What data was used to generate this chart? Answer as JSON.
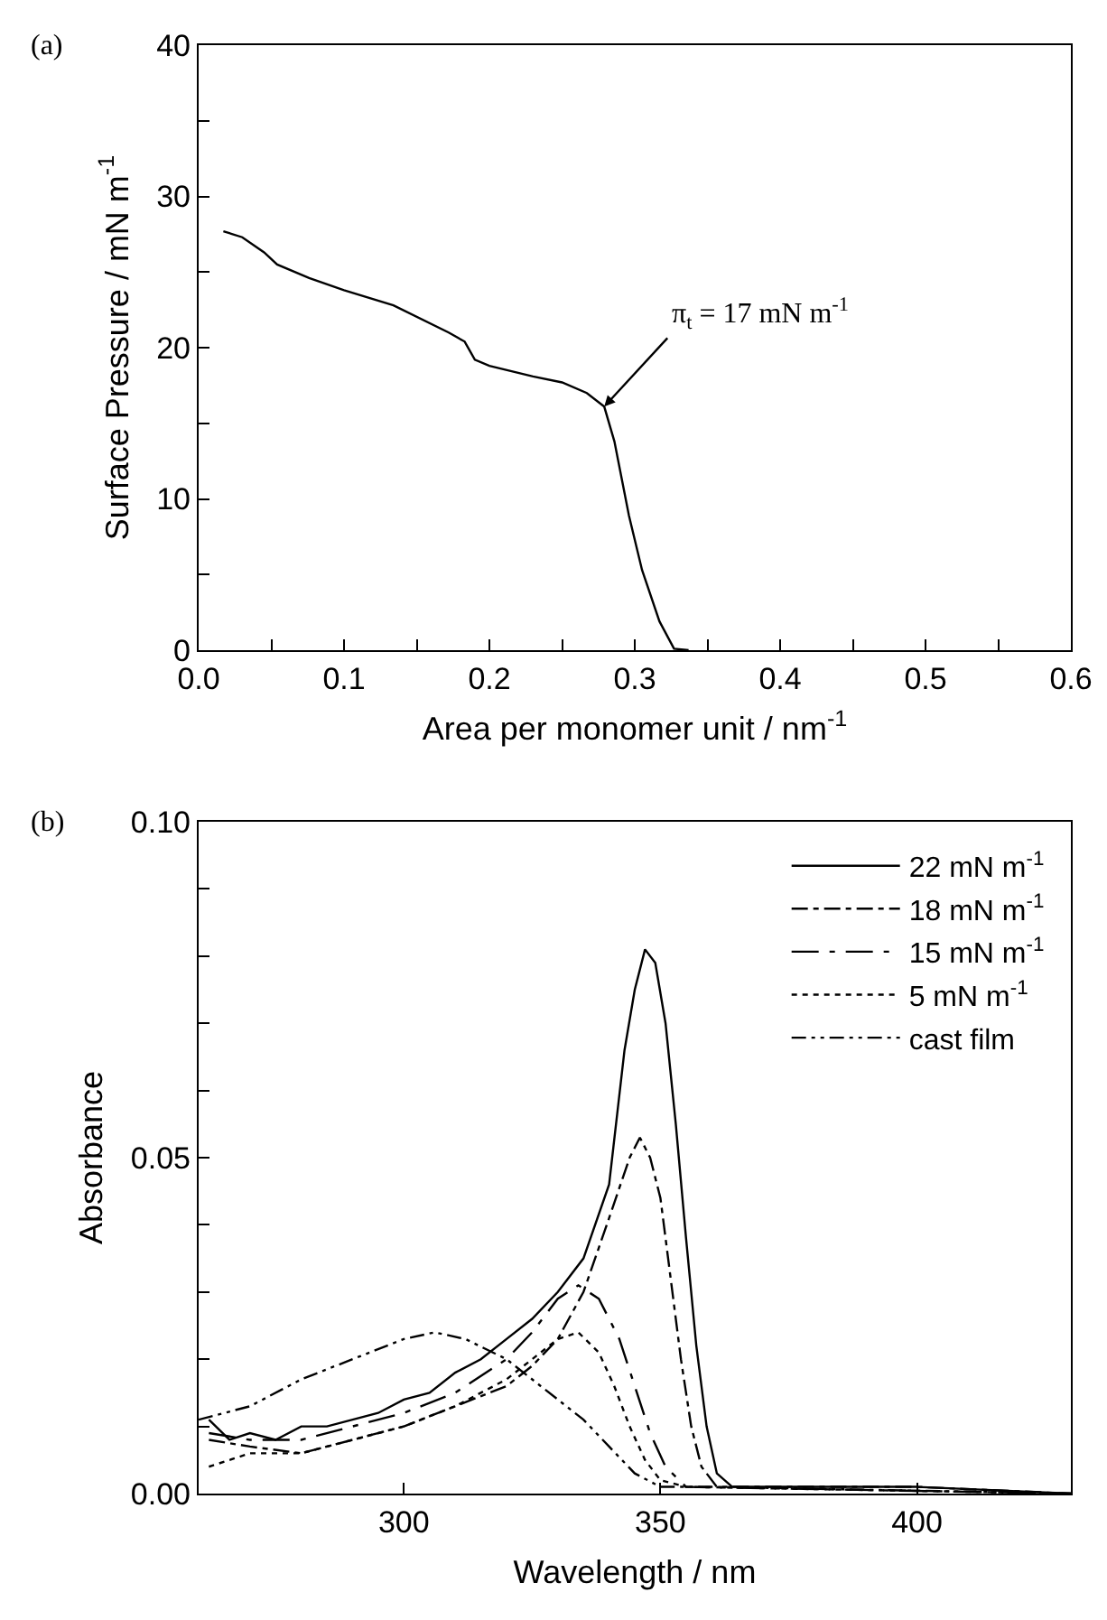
{
  "chart_data": [
    {
      "type": "line",
      "xlabel": "Area per monomer unit / nm$^{-1}$",
      "ylabel": "Surface Pressure / mN m$^{-1}$",
      "annotations": [
        "(a)",
        {
          "text": "π$_{t}$ = 17 mN m$^{-1}$",
          "x": 0.279,
          "y": 16.1
        }
      ],
      "xlim": [
        0.0,
        0.6
      ],
      "xticks": [
        {
          "value": 0,
          "label": "0.0"
        },
        {
          "value": 0.05,
          "label": null
        },
        0.1,
        {
          "value": 0.15,
          "label": null
        },
        0.2,
        {
          "value": 0.25,
          "label": null
        },
        0.3,
        {
          "value": 0.35,
          "label": null
        },
        0.4,
        {
          "value": 0.45,
          "label": null
        },
        0.5,
        {
          "value": 0.55,
          "label": null
        },
        0.6
      ],
      "ylim": [
        0,
        40
      ],
      "yticks": [
        0,
        {
          "value": 5,
          "label": null
        },
        10,
        {
          "value": 15,
          "label": null
        },
        20,
        {
          "value": 25,
          "label": null
        },
        30,
        {
          "value": 35,
          "label": null
        },
        40
      ],
      "grid": false,
      "legend": false,
      "marker": "none",
      "series": [
        {
          "color": "#000000",
          "line_style": "solid",
          "x": [
            0.017,
            0.03,
            0.045,
            0.054,
            0.076,
            0.1,
            0.134,
            0.172,
            0.183,
            0.19,
            0.2,
            0.23,
            0.25,
            0.267,
            0.279,
            0.286,
            0.296,
            0.305,
            0.317,
            0.327,
            0.337
          ],
          "values": [
            27.7,
            27.3,
            26.3,
            25.5,
            24.6,
            23.8,
            22.8,
            21.0,
            20.4,
            19.2,
            18.8,
            18.1,
            17.7,
            17.0,
            16.1,
            13.8,
            8.9,
            5.3,
            1.9,
            0.1,
            0
          ]
        }
      ]
    },
    {
      "type": "line",
      "xlabel": "Wavelength / nm",
      "ylabel": "Absorbance",
      "annotations": [
        "(b)"
      ],
      "xlim": [
        260,
        430
      ],
      "xticks": [
        300,
        350,
        400
      ],
      "ylim": [
        0,
        0.1
      ],
      "yticks": [
        {
          "value": 0,
          "label": "0.00"
        },
        {
          "value": 0.01,
          "label": null
        },
        {
          "value": 0.02,
          "label": null
        },
        {
          "value": 0.03,
          "label": null
        },
        {
          "value": 0.04,
          "label": null
        },
        0.05,
        {
          "value": 0.06,
          "label": null
        },
        {
          "value": 0.07,
          "label": null
        },
        {
          "value": 0.08,
          "label": null
        },
        {
          "value": 0.09,
          "label": null
        },
        {
          "value": 0.1,
          "label": "0.10"
        }
      ],
      "grid": false,
      "legend": "top right",
      "marker": "none",
      "series": [
        {
          "name": "22 mN m$^{-1}$",
          "color": "#000000",
          "line_style": "solid",
          "x": [
            262,
            266,
            270,
            275,
            280,
            285,
            290,
            295,
            300,
            305,
            310,
            315,
            320,
            325,
            330,
            335,
            340,
            343,
            345,
            347,
            349,
            351,
            353,
            355,
            357,
            359,
            361,
            364,
            400,
            430
          ],
          "values": [
            0.011,
            0.008,
            0.009,
            0.008,
            0.01,
            0.01,
            0.011,
            0.012,
            0.014,
            0.015,
            0.018,
            0.02,
            0.023,
            0.026,
            0.03,
            0.035,
            0.046,
            0.066,
            0.075,
            0.081,
            0.079,
            0.07,
            0.055,
            0.038,
            0.022,
            0.01,
            0.003,
            0.001,
            0.001,
            0
          ]
        },
        {
          "name": "18 mN m$^{-1}$",
          "color": "#000000",
          "line_style": "dashed",
          "x": [
            262,
            270,
            280,
            290,
            300,
            310,
            320,
            325,
            330,
            335,
            340,
            344,
            346,
            348,
            350,
            352,
            354,
            356,
            358,
            361,
            400,
            430
          ],
          "values": [
            0.008,
            0.007,
            0.006,
            0.008,
            0.01,
            0.013,
            0.016,
            0.019,
            0.023,
            0.03,
            0.041,
            0.05,
            0.053,
            0.05,
            0.044,
            0.032,
            0.02,
            0.01,
            0.004,
            0.001,
            0.001,
            0
          ]
        },
        {
          "name": "15 mN m$^{-1}$",
          "color": "#000000",
          "line_style": "dashed",
          "x": [
            262,
            270,
            280,
            290,
            300,
            310,
            320,
            325,
            330,
            334,
            338,
            342,
            345,
            348,
            351,
            355,
            430
          ],
          "values": [
            0.009,
            0.008,
            0.008,
            0.01,
            0.012,
            0.015,
            0.02,
            0.024,
            0.029,
            0.031,
            0.029,
            0.023,
            0.016,
            0.009,
            0.004,
            0.001,
            0
          ]
        },
        {
          "name": "5 mN m$^{-1}$",
          "color": "#000000",
          "line_style": "dotted",
          "x": [
            262,
            270,
            280,
            290,
            300,
            310,
            320,
            325,
            330,
            334,
            338,
            341,
            344,
            347,
            350,
            355,
            430
          ],
          "values": [
            0.004,
            0.006,
            0.006,
            0.008,
            0.01,
            0.013,
            0.017,
            0.02,
            0.023,
            0.024,
            0.021,
            0.016,
            0.01,
            0.005,
            0.002,
            0.001,
            0
          ]
        },
        {
          "name": "cast film",
          "color": "#000000",
          "line_style": "dashed",
          "x": [
            260,
            270,
            280,
            290,
            300,
            306,
            312,
            320,
            325,
            330,
            335,
            340,
            345,
            350,
            360,
            430
          ],
          "values": [
            0.011,
            0.013,
            0.017,
            0.02,
            0.023,
            0.024,
            0.023,
            0.02,
            0.017,
            0.014,
            0.011,
            0.007,
            0.003,
            0.001,
            0.001,
            0
          ]
        }
      ]
    }
  ]
}
